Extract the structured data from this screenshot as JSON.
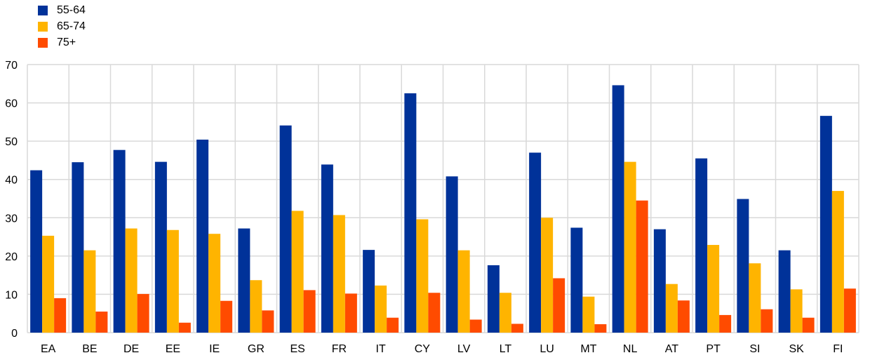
{
  "chart_data": {
    "type": "bar",
    "title": "",
    "xlabel": "",
    "ylabel": "",
    "ylim": [
      0,
      70
    ],
    "yticks": [
      0,
      10,
      20,
      30,
      40,
      50,
      60,
      70
    ],
    "grid": true,
    "legend_position": "top-left",
    "categories": [
      "EA",
      "BE",
      "DE",
      "EE",
      "IE",
      "GR",
      "ES",
      "FR",
      "IT",
      "CY",
      "LV",
      "LT",
      "LU",
      "MT",
      "NL",
      "AT",
      "PT",
      "SI",
      "SK",
      "FI"
    ],
    "series": [
      {
        "name": "55-64",
        "color": "#003299",
        "values": [
          42.4,
          44.5,
          47.7,
          44.6,
          50.4,
          27.2,
          54.1,
          43.9,
          21.6,
          62.5,
          40.8,
          17.6,
          47.0,
          27.4,
          64.6,
          27.0,
          45.5,
          34.9,
          21.5,
          56.6
        ]
      },
      {
        "name": "65-74",
        "color": "#FFB400",
        "values": [
          25.3,
          21.5,
          27.2,
          26.8,
          25.8,
          13.7,
          31.8,
          30.7,
          12.3,
          29.6,
          21.5,
          10.4,
          30.0,
          9.4,
          44.6,
          12.7,
          22.9,
          18.1,
          11.3,
          37.0
        ]
      },
      {
        "name": "75+",
        "color": "#FF4B00",
        "values": [
          9.0,
          5.5,
          10.1,
          2.6,
          8.3,
          5.8,
          11.1,
          10.2,
          3.9,
          10.4,
          3.4,
          2.3,
          14.2,
          2.2,
          34.5,
          8.4,
          4.6,
          6.1,
          3.9,
          11.5
        ]
      }
    ]
  }
}
